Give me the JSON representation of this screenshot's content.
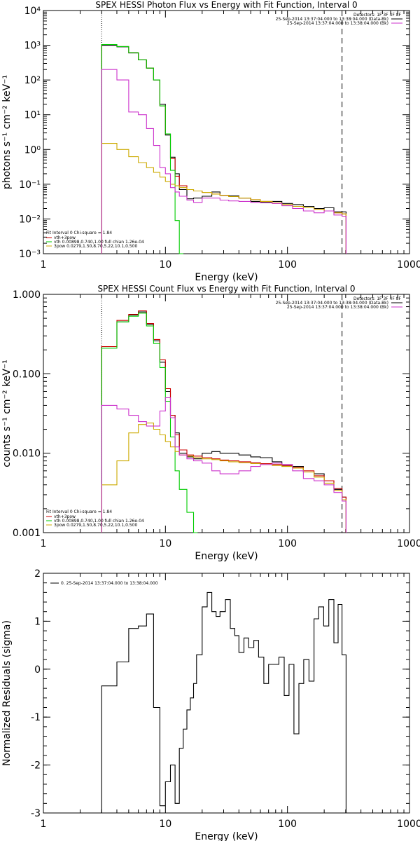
{
  "chart_data": [
    {
      "type": "line",
      "step": true,
      "title": "SPEX HESSI Photon Flux vs Energy with Fit Function, Interval 0",
      "xlabel": "Energy (keV)",
      "ylabel": "photons s⁻¹ cm⁻² keV⁻¹",
      "xscale": "log",
      "yscale": "log",
      "xlim": [
        1,
        1000
      ],
      "ylim": [
        0.001,
        10000
      ],
      "xticklabels": [
        "1",
        "10",
        "100",
        "1000"
      ],
      "yticks": [
        0.001,
        0.01,
        0.1,
        1,
        10,
        100,
        1000,
        10000
      ],
      "yticklabels": [
        "10⁻³",
        "10⁻²",
        "10⁻¹",
        "10⁰",
        "10¹",
        "10²",
        "10³",
        "10⁴"
      ],
      "xlines": [
        {
          "x": 3,
          "style": "dotted"
        },
        {
          "x": 280,
          "style": "dashed"
        }
      ],
      "legend_top": {
        "header": "Detectors: 1F 3F 4F 8F",
        "entries": [
          {
            "text": "25-Sep-2014 13:37:04.000 to 13:38:04.000 (Data-Bk)",
            "color": "#000000"
          },
          {
            "text": "25-Sep-2014 13:37:04.000 to 13:38:04.000 (Bk)",
            "color": "#cc33cc"
          }
        ]
      },
      "legend_bottom": {
        "header": "Fit Interval 0    Chi-square = 1.84",
        "entries": [
          {
            "text": "vth+3pow",
            "color": "#cc0000"
          },
          {
            "text": "vth 0.00898,0.740,1.00   full chian 1.26e-04",
            "color": "#00cc00"
          },
          {
            "text": "3pow 0.0279,1.50,8.70,5.22,10.1,0.500",
            "color": "#ccaa00"
          }
        ]
      },
      "series": [
        {
          "key": "data",
          "color": "#000000",
          "x": [
            3,
            4,
            5,
            6,
            7,
            8,
            9,
            10,
            11,
            12,
            13,
            15,
            17,
            20,
            24,
            28,
            33,
            40,
            50,
            60,
            75,
            90,
            110,
            135,
            165,
            200,
            240,
            280
          ],
          "y": [
            1000,
            900,
            600,
            380,
            220,
            100,
            20,
            2.6,
            0.6,
            0.2,
            0.07,
            0.038,
            0.04,
            0.045,
            0.06,
            0.048,
            0.046,
            0.04,
            0.032,
            0.03,
            0.032,
            0.028,
            0.026,
            0.023,
            0.02,
            0.021,
            0.016,
            0.016
          ]
        },
        {
          "key": "model",
          "color": "#cc0000",
          "x": [
            3,
            4,
            5,
            6,
            7,
            8,
            9,
            10,
            11,
            12,
            13,
            15,
            17,
            20,
            24,
            28,
            33,
            40,
            50,
            60,
            75,
            90,
            110,
            135,
            165,
            200,
            240,
            280
          ],
          "y": [
            1050,
            920,
            610,
            380,
            220,
            100,
            18,
            2.8,
            0.55,
            0.17,
            0.09,
            0.07,
            0.064,
            0.058,
            0.052,
            0.048,
            0.044,
            0.04,
            0.036,
            0.032,
            0.029,
            0.026,
            0.023,
            0.021,
            0.019,
            0.017,
            0.015,
            0.014
          ]
        },
        {
          "key": "vth",
          "color": "#00cc00",
          "x": [
            3,
            4,
            5,
            6,
            7,
            8,
            9,
            10,
            11,
            12,
            13
          ],
          "y": [
            1050,
            920,
            610,
            380,
            220,
            100,
            18,
            2.8,
            0.25,
            0.009,
            0.001
          ]
        },
        {
          "key": "3pow",
          "color": "#ccaa00",
          "x": [
            3,
            4,
            5,
            6,
            7,
            8,
            9,
            10,
            11,
            12,
            13,
            15,
            17,
            20,
            24,
            28,
            33,
            40,
            50,
            60,
            75,
            90,
            110,
            135,
            165,
            200,
            240,
            280
          ],
          "y": [
            1.5,
            1.0,
            0.62,
            0.42,
            0.3,
            0.22,
            0.16,
            0.12,
            0.1,
            0.09,
            0.08,
            0.07,
            0.064,
            0.058,
            0.052,
            0.048,
            0.044,
            0.04,
            0.036,
            0.032,
            0.029,
            0.026,
            0.023,
            0.021,
            0.019,
            0.017,
            0.015,
            0.014
          ]
        },
        {
          "key": "bk",
          "color": "#cc33cc",
          "x": [
            3,
            4,
            5,
            6,
            7,
            8,
            9,
            10,
            11,
            12,
            13,
            15,
            17,
            20,
            24,
            28,
            33,
            40,
            50,
            60,
            75,
            90,
            110,
            135,
            165,
            200,
            240,
            280
          ],
          "y": [
            200,
            100,
            12,
            10,
            4,
            1.3,
            0.3,
            0.2,
            0.08,
            0.06,
            0.045,
            0.035,
            0.03,
            0.04,
            0.04,
            0.035,
            0.033,
            0.032,
            0.03,
            0.029,
            0.028,
            0.024,
            0.02,
            0.017,
            0.015,
            0.017,
            0.013,
            0.012
          ]
        }
      ]
    },
    {
      "type": "line",
      "step": true,
      "title": "SPEX HESSI Count Flux vs Energy with Fit Function, Interval 0",
      "xlabel": "Energy (keV)",
      "ylabel": "counts s⁻¹ cm⁻² keV⁻¹",
      "xscale": "log",
      "yscale": "log",
      "xlim": [
        1,
        1000
      ],
      "ylim": [
        0.001,
        1
      ],
      "xticklabels": [
        "1",
        "10",
        "100",
        "1000"
      ],
      "yticks": [
        0.001,
        0.01,
        0.1,
        1
      ],
      "yticklabels": [
        "0.001",
        "0.010",
        "0.100",
        "1.000"
      ],
      "xlines": [
        {
          "x": 3,
          "style": "dotted"
        },
        {
          "x": 280,
          "style": "dashed"
        }
      ],
      "legend_top": {
        "header": "Detectors: 1F 3F 4F 8F",
        "entries": [
          {
            "text": "25-Sep-2014 13:37:04.000 to 13:38:04.000 (Data-Bk)",
            "color": "#000000"
          },
          {
            "text": "25-Sep-2014 13:37:04.000 to 13:38:04.000 (Bk)",
            "color": "#cc33cc"
          }
        ]
      },
      "legend_bottom": {
        "header": "Fit Interval 0    Chi-square = 1.84",
        "entries": [
          {
            "text": "vth+3pow",
            "color": "#cc0000"
          },
          {
            "text": "vth 0.00898,0.740,1.00   full chian 1.26e-04",
            "color": "#00cc00"
          },
          {
            "text": "3pow 0.0279,1.50,8.70,5.22,10.1,0.500",
            "color": "#ccaa00"
          }
        ]
      },
      "series": [
        {
          "key": "data",
          "color": "#000000",
          "x": [
            3,
            4,
            5,
            6,
            7,
            8,
            9,
            10,
            11,
            12,
            13,
            15,
            17,
            20,
            24,
            28,
            33,
            40,
            50,
            60,
            75,
            90,
            110,
            135,
            165,
            200,
            240,
            280
          ],
          "y": [
            0.22,
            0.45,
            0.55,
            0.6,
            0.42,
            0.26,
            0.14,
            0.06,
            0.03,
            0.018,
            0.01,
            0.009,
            0.0085,
            0.01,
            0.0105,
            0.01,
            0.01,
            0.0095,
            0.009,
            0.0088,
            0.0078,
            0.007,
            0.0068,
            0.0058,
            0.0055,
            0.0045,
            0.0035,
            0.0028
          ]
        },
        {
          "key": "model",
          "color": "#cc0000",
          "x": [
            3,
            4,
            5,
            6,
            7,
            8,
            9,
            10,
            11,
            12,
            13,
            15,
            17,
            20,
            24,
            28,
            33,
            40,
            50,
            60,
            75,
            90,
            110,
            135,
            165,
            200,
            240,
            280
          ],
          "y": [
            0.22,
            0.47,
            0.56,
            0.62,
            0.43,
            0.27,
            0.15,
            0.065,
            0.03,
            0.017,
            0.011,
            0.0095,
            0.0092,
            0.0088,
            0.0085,
            0.0082,
            0.008,
            0.0078,
            0.0076,
            0.0074,
            0.0072,
            0.007,
            0.0066,
            0.006,
            0.0052,
            0.0045,
            0.0036,
            0.0028
          ]
        },
        {
          "key": "vth",
          "color": "#00cc00",
          "x": [
            3,
            4,
            5,
            6,
            7,
            8,
            9,
            10,
            11,
            12,
            13,
            15,
            17
          ],
          "y": [
            0.21,
            0.45,
            0.53,
            0.58,
            0.4,
            0.24,
            0.12,
            0.045,
            0.016,
            0.006,
            0.0035,
            0.0018,
            0.001
          ]
        },
        {
          "key": "3pow",
          "color": "#ccaa00",
          "x": [
            3,
            4,
            5,
            6,
            7,
            8,
            9,
            10,
            11,
            12,
            13,
            15,
            17,
            20,
            24,
            28,
            33,
            40,
            50,
            60,
            75,
            90,
            110,
            135,
            165,
            200,
            240,
            280
          ],
          "y": [
            0.004,
            0.008,
            0.018,
            0.023,
            0.024,
            0.02,
            0.017,
            0.014,
            0.012,
            0.0105,
            0.0095,
            0.0092,
            0.0088,
            0.0085,
            0.0083,
            0.008,
            0.0078,
            0.0076,
            0.0074,
            0.0072,
            0.007,
            0.0068,
            0.0065,
            0.0058,
            0.005,
            0.0042,
            0.0034,
            0.0026
          ]
        },
        {
          "key": "bk",
          "color": "#cc33cc",
          "x": [
            3,
            4,
            5,
            6,
            7,
            8,
            9,
            10,
            11,
            12,
            13,
            15,
            17,
            20,
            24,
            28,
            33,
            40,
            50,
            60,
            75,
            90,
            110,
            135,
            165,
            200,
            240,
            280
          ],
          "y": [
            0.04,
            0.036,
            0.03,
            0.025,
            0.022,
            0.022,
            0.034,
            0.05,
            0.028,
            0.012,
            0.0095,
            0.0085,
            0.008,
            0.0075,
            0.006,
            0.0055,
            0.0055,
            0.006,
            0.0068,
            0.0072,
            0.0075,
            0.0072,
            0.006,
            0.0048,
            0.0045,
            0.004,
            0.0032,
            0.0025
          ]
        }
      ]
    },
    {
      "type": "line",
      "step": true,
      "title": "",
      "xlabel": "Energy (keV)",
      "ylabel": "Normalized Residuals (sigma)",
      "xscale": "log",
      "yscale": "linear",
      "xlim": [
        1,
        1000
      ],
      "ylim": [
        -3,
        2
      ],
      "xticklabels": [
        "1",
        "10",
        "100",
        "1000"
      ],
      "yticks": [
        -3,
        -2,
        -1,
        0,
        1,
        2
      ],
      "yticklabels": [
        "-3",
        "-2",
        "-1",
        "0",
        "1",
        "2"
      ],
      "xlines": [],
      "legend_top": {
        "header": "",
        "entries": [
          {
            "text": "0. 25-Sep-2014 13:37:04.000 to 13:38:04.000",
            "color": "#000000"
          }
        ]
      },
      "legend_bottom": {
        "header": "",
        "entries": []
      },
      "series": [
        {
          "key": "residuals",
          "color": "#000000",
          "x": [
            3,
            4,
            5,
            6,
            7,
            8,
            9,
            10,
            11,
            12,
            13,
            14,
            15,
            16,
            17,
            18,
            20,
            22,
            24,
            26,
            28,
            31,
            34,
            37,
            40,
            44,
            48,
            53,
            58,
            64,
            70,
            77,
            85,
            94,
            103,
            113,
            124,
            136,
            150,
            165,
            180,
            198,
            218,
            240,
            260,
            280
          ],
          "y": [
            -0.35,
            0.15,
            0.85,
            0.9,
            1.15,
            -0.8,
            -2.85,
            -2.35,
            -2.0,
            -2.8,
            -1.65,
            -1.25,
            -0.85,
            -0.6,
            -0.3,
            0.3,
            1.3,
            1.6,
            1.2,
            1.1,
            1.2,
            1.45,
            0.85,
            0.7,
            0.35,
            0.65,
            0.45,
            0.6,
            0.25,
            -0.3,
            0.1,
            0.1,
            0.25,
            -0.55,
            0.1,
            -1.35,
            -0.3,
            0.2,
            -0.25,
            1.05,
            1.3,
            0.9,
            1.45,
            0.55,
            1.35,
            0.3
          ]
        }
      ]
    }
  ]
}
